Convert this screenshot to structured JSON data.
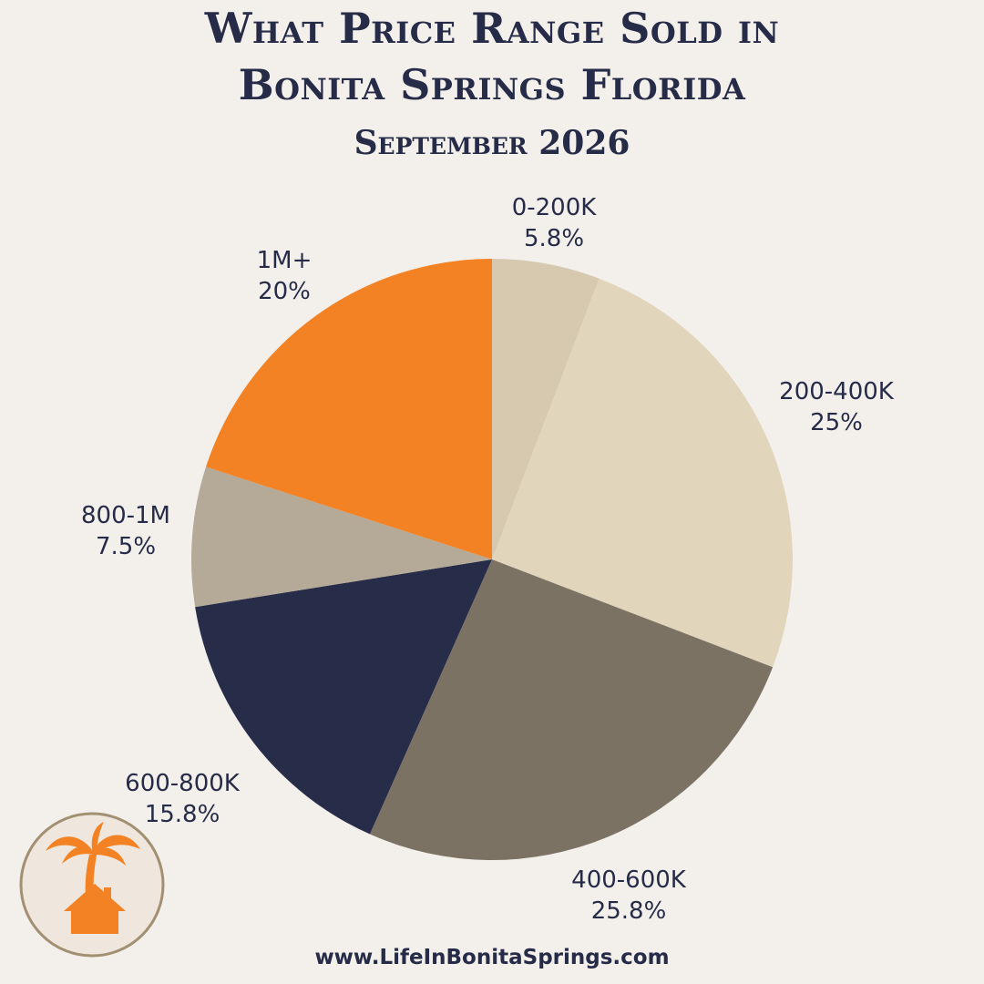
{
  "header": {
    "title_line1": "What Price Range Sold in",
    "title_line2": "Bonita Springs Florida",
    "subtitle": "September 2026"
  },
  "footer": {
    "url": "www.LifeInBonitaSprings.com"
  },
  "logo": {
    "icon": "palm-tree-house-icon"
  },
  "colors": {
    "background": "#f3f0ec",
    "text": "#262b47",
    "accent": "#f28224"
  },
  "chart_data": {
    "type": "pie",
    "title": "",
    "start": "top",
    "direction": "clockwise",
    "slices": [
      {
        "label": "0-200K",
        "value": 5.8,
        "value_label": "5.8%",
        "color": "#d7c8b0"
      },
      {
        "label": "200-400K",
        "value": 25,
        "value_label": "25%",
        "color": "#e1d5bb"
      },
      {
        "label": "400-600K",
        "value": 25.8,
        "value_label": "25.8%",
        "color": "#7b7264"
      },
      {
        "label": "600-800K",
        "value": 15.8,
        "value_label": "15.8%",
        "color": "#272c48"
      },
      {
        "label": "800-1M",
        "value": 7.5,
        "value_label": "7.5%",
        "color": "#b5aa97"
      },
      {
        "label": "1M+",
        "value": 20,
        "value_label": "20%",
        "color": "#f28224"
      }
    ]
  }
}
